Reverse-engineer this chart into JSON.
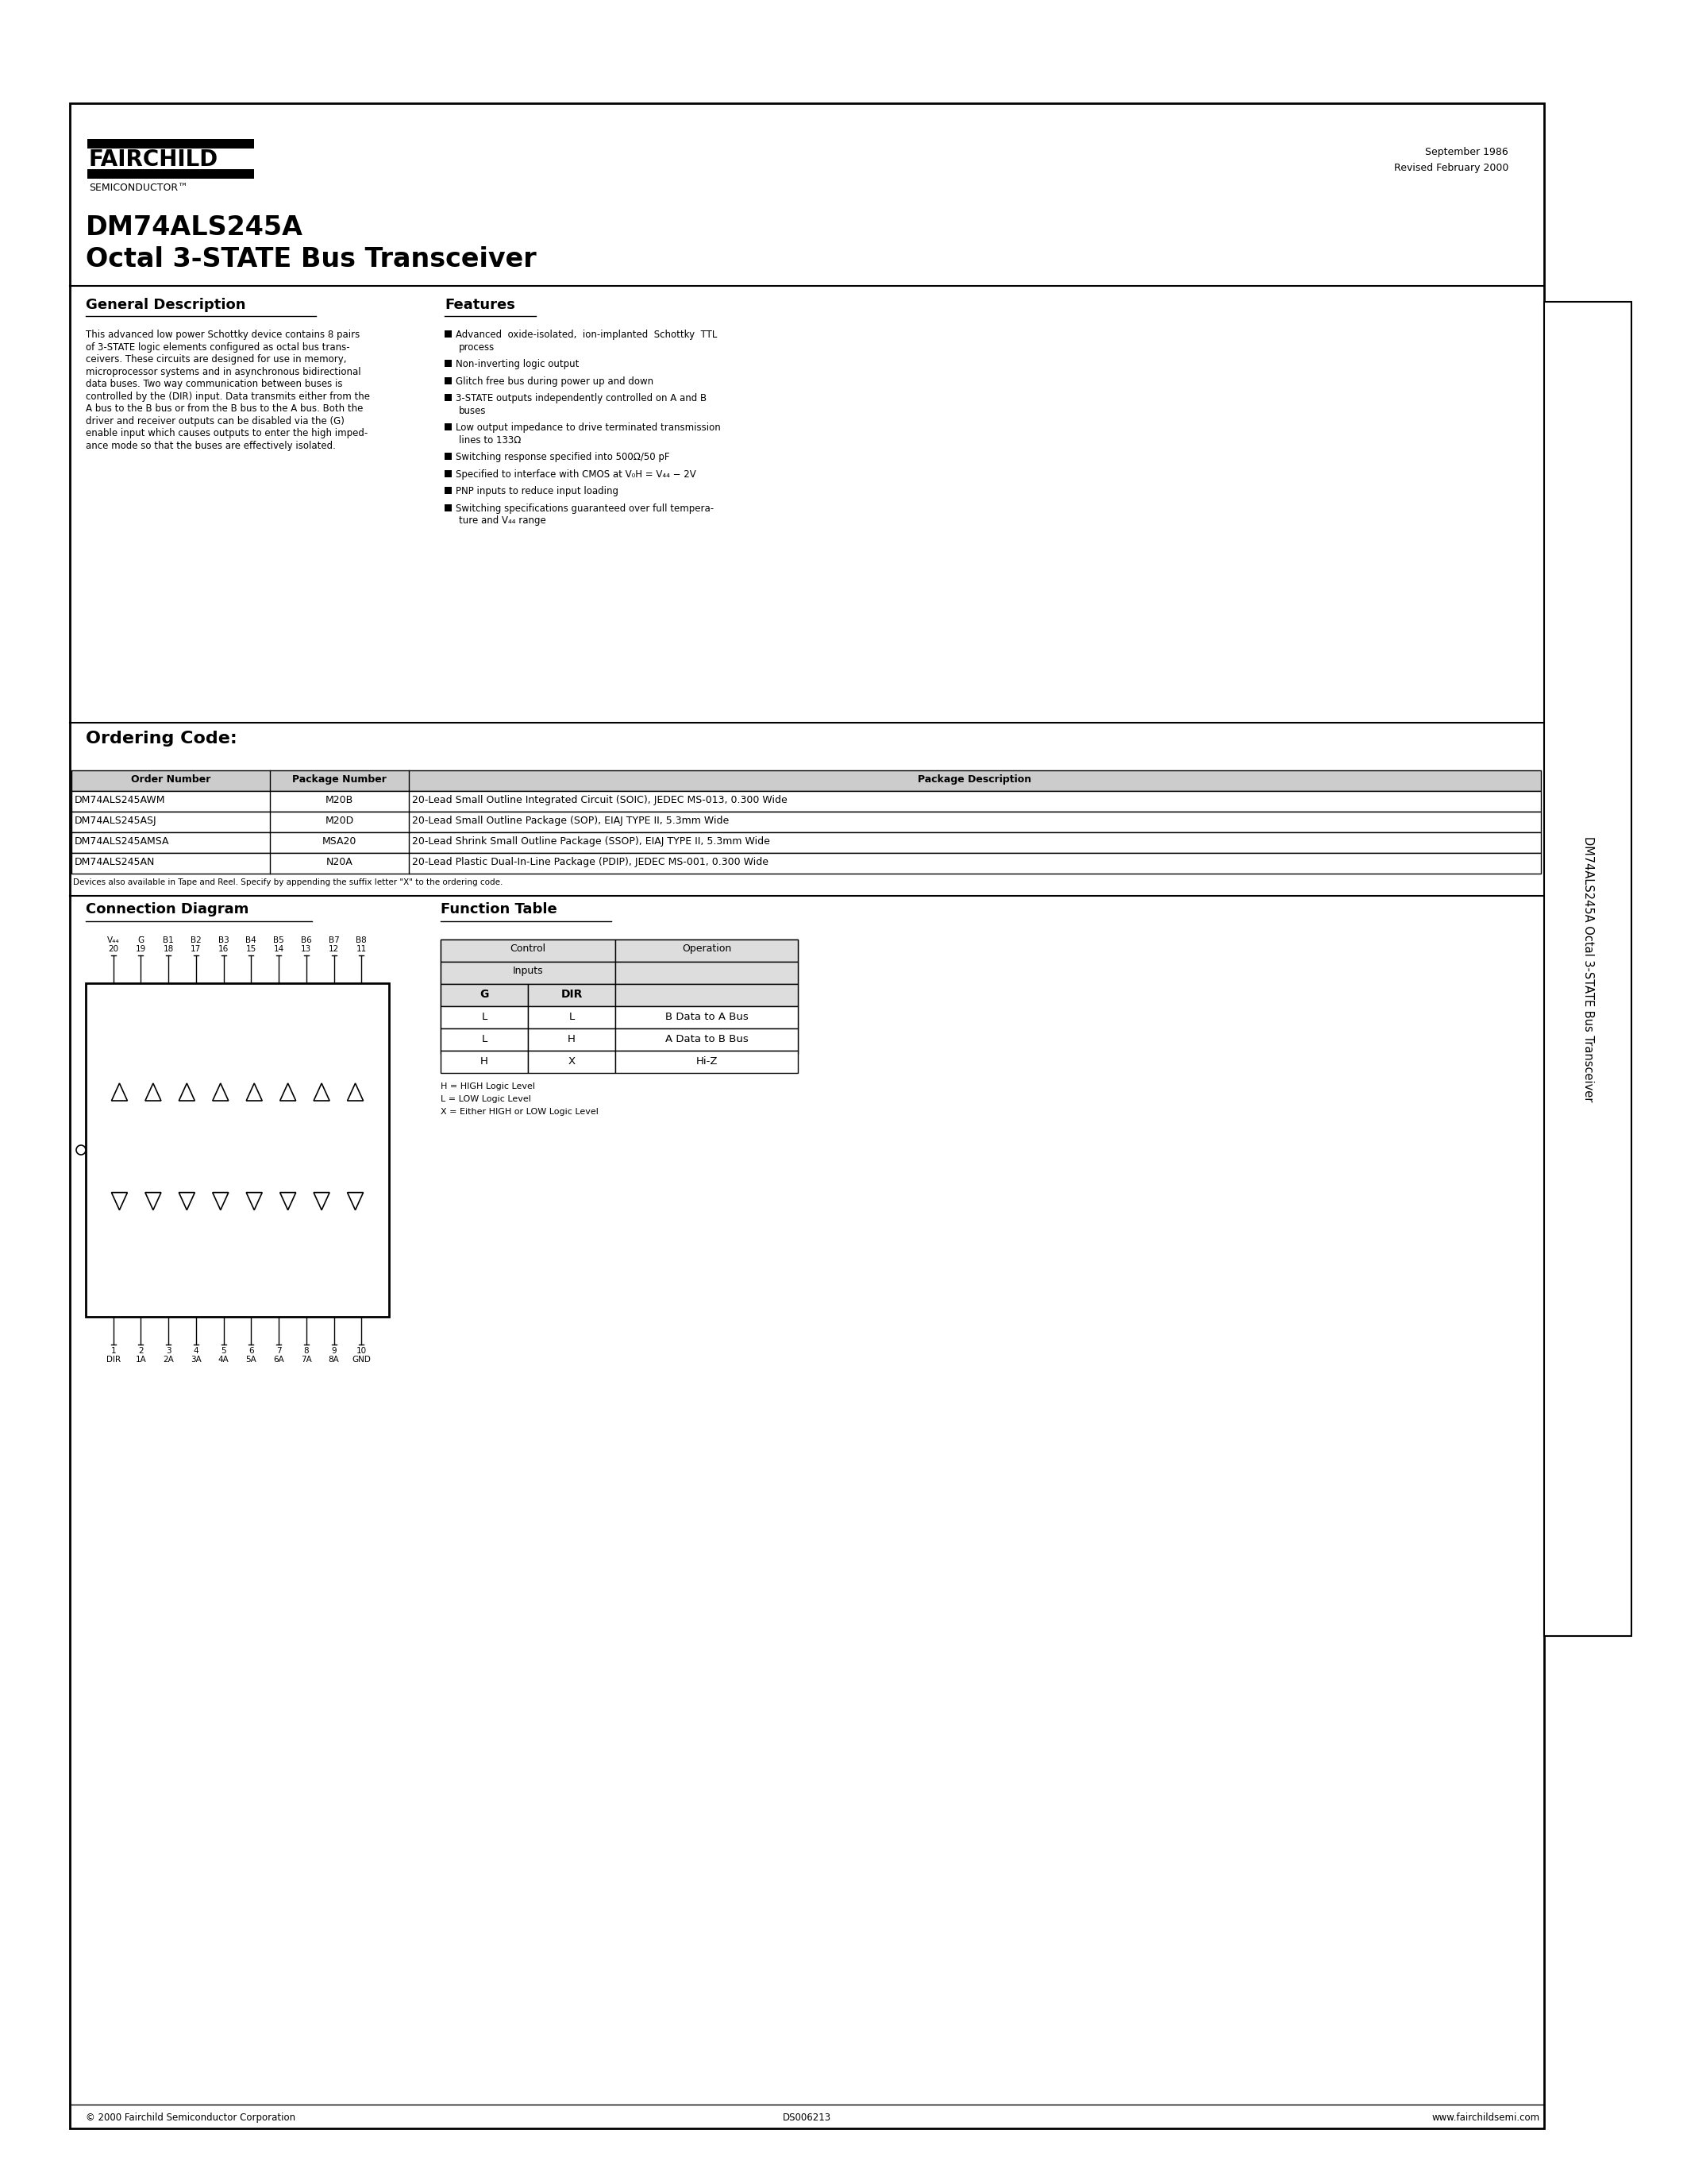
{
  "page_bg": "#ffffff",
  "header_date": "September 1986\nRevised February 2000",
  "fairchild_logo_text": "FAIRCHILD",
  "semiconductor_text": "SEMICONDUCTOR™",
  "part_number": "DM74ALS245A",
  "part_desc": "Octal 3-STATE Bus Transceiver",
  "gen_desc_title": "General Description",
  "gen_desc_lines": [
    "This advanced low power Schottky device contains 8 pairs",
    "of 3-STATE logic elements configured as octal bus trans-",
    "ceivers. These circuits are designed for use in memory,",
    "microprocessor systems and in asynchronous bidirectional",
    "data buses. Two way communication between buses is",
    "controlled by the (DIR) input. Data transmits either from the",
    "A bus to the B bus or from the B bus to the A bus. Both the",
    "driver and receiver outputs can be disabled via the (G)",
    "enable input which causes outputs to enter the high imped-",
    "ance mode so that the buses are effectively isolated."
  ],
  "features_title": "Features",
  "features_list": [
    [
      "Advanced  oxide-isolated,  ion-implanted  Schottky  TTL",
      "process"
    ],
    [
      "Non-inverting logic output"
    ],
    [
      "Glitch free bus during power up and down"
    ],
    [
      "3-STATE outputs independently controlled on A and B",
      "buses"
    ],
    [
      "Low output impedance to drive terminated transmission",
      "lines to 133Ω"
    ],
    [
      "Switching response specified into 500Ω/50 pF"
    ],
    [
      "Specified to interface with CMOS at V₀H = V₄₄ − 2V"
    ],
    [
      "PNP inputs to reduce input loading"
    ],
    [
      "Switching specifications guaranteed over full tempera-",
      "ture and V₄₄ range"
    ]
  ],
  "ordering_title": "Ordering Code:",
  "ordering_headers": [
    "Order Number",
    "Package Number",
    "Package Description"
  ],
  "ordering_rows": [
    [
      "DM74ALS245AWM",
      "M20B",
      "20-Lead Small Outline Integrated Circuit (SOIC), JEDEC MS-013, 0.300 Wide"
    ],
    [
      "DM74ALS245ASJ",
      "M20D",
      "20-Lead Small Outline Package (SOP), EIAJ TYPE II, 5.3mm Wide"
    ],
    [
      "DM74ALS245AMSA",
      "MSA20",
      "20-Lead Shrink Small Outline Package (SSOP), EIAJ TYPE II, 5.3mm Wide"
    ],
    [
      "DM74ALS245AN",
      "N20A",
      "20-Lead Plastic Dual-In-Line Package (PDIP), JEDEC MS-001, 0.300 Wide"
    ]
  ],
  "ordering_note": "Devices also available in Tape and Reel. Specify by appending the suffix letter \"X\" to the ordering code.",
  "conn_diag_title": "Connection Diagram",
  "func_table_title": "Function Table",
  "func_table_rows": [
    [
      "L",
      "L",
      "B Data to A Bus"
    ],
    [
      "L",
      "H",
      "A Data to B Bus"
    ],
    [
      "H",
      "X",
      "Hi-Z"
    ]
  ],
  "func_table_notes": [
    "H = HIGH Logic Level",
    "L = LOW Logic Level",
    "X = Either HIGH or LOW Logic Level"
  ],
  "footer_copyright": "© 2000 Fairchild Semiconductor Corporation",
  "footer_ds": "DS006213",
  "footer_web": "www.fairchildsemi.com",
  "pin_labels_top": [
    "V₄₄",
    "G̅",
    "B1",
    "B2",
    "B3",
    "B4",
    "B5",
    "B6",
    "B7",
    "B8"
  ],
  "pin_numbers_top": [
    "20",
    "19",
    "18",
    "17",
    "16",
    "15",
    "14",
    "13",
    "12",
    "11"
  ],
  "pin_labels_bot": [
    "DIR",
    "1A",
    "2A",
    "3A",
    "4A",
    "5A",
    "6A",
    "7A",
    "8A",
    "GND"
  ],
  "pin_numbers_bot": [
    "1",
    "2",
    "3",
    "4",
    "5",
    "6",
    "7",
    "8",
    "9",
    "10"
  ],
  "side_tab_text": "DM74ALS245A Octal 3-STATE Bus Transceiver"
}
